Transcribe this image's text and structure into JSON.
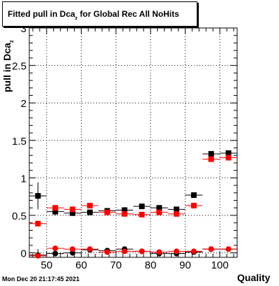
{
  "title": {
    "main": "Fitted pull in Dca",
    "subscript": "z",
    "suffix": " for Global Rec All NoHits"
  },
  "footer": {
    "timestamp": "Mon Dec 20 21:17:45 2021"
  },
  "chart_data": {
    "type": "scatter",
    "title": "Fitted pull in Dca_z for Global Rec All NoHits",
    "xlabel": "Quality",
    "ylabel_main": "pull in Dca",
    "ylabel_sub": "z",
    "xlim": [
      45,
      105
    ],
    "ylim": [
      -0.06,
      3.0
    ],
    "x_ticks": [
      50,
      60,
      70,
      80,
      90,
      100
    ],
    "x_tick_labels": [
      "50",
      "60",
      "70",
      "80",
      "90",
      "100"
    ],
    "y_ticks": [
      0,
      0.5,
      1,
      1.5,
      2,
      2.5,
      3
    ],
    "y_tick_labels": [
      "0",
      "0.5",
      "1",
      "1.5",
      "2",
      "2.5",
      "3"
    ],
    "grid": true,
    "x_bin_half_width": 2.5,
    "series": [
      {
        "marker": "square",
        "color": "#000000",
        "x": [
          47.5,
          52.5,
          57.5,
          62.5,
          67.5,
          72.5,
          77.5,
          82.5,
          87.5,
          92.5,
          97.5,
          102.5
        ],
        "y": [
          0.76,
          0.55,
          0.53,
          0.54,
          0.56,
          0.57,
          0.62,
          0.6,
          0.58,
          0.77,
          1.32,
          1.33
        ],
        "yerr": [
          0.18,
          0.05,
          0.03,
          0.03,
          0.02,
          0.02,
          0.02,
          0.02,
          0.03,
          0.02,
          0.02,
          0.02
        ]
      },
      {
        "marker": "square",
        "color": "#ff0000",
        "x": [
          47.5,
          52.5,
          57.5,
          62.5,
          67.5,
          72.5,
          77.5,
          82.5,
          87.5,
          92.5,
          97.5,
          102.5
        ],
        "y": [
          0.39,
          0.6,
          0.58,
          0.63,
          0.54,
          0.52,
          0.51,
          0.54,
          0.52,
          0.63,
          1.25,
          1.27
        ],
        "yerr": [
          0.03,
          0.03,
          0.02,
          0.02,
          0.02,
          0.02,
          0.02,
          0.02,
          0.02,
          0.02,
          0.02,
          0.02
        ]
      },
      {
        "marker": "circle",
        "color": "#000000",
        "x": [
          47.5,
          52.5,
          57.5,
          62.5,
          67.5,
          72.5,
          77.5,
          82.5,
          87.5,
          92.5,
          97.5,
          102.5
        ],
        "y": [
          -0.03,
          -0.01,
          0.0,
          0.04,
          0.03,
          0.05,
          0.02,
          -0.01,
          -0.01,
          0.01,
          0.05,
          0.05
        ],
        "yerr": [
          0.08,
          0.03,
          0.02,
          0.02,
          0.02,
          0.02,
          0.02,
          0.02,
          0.02,
          0.02,
          0.02,
          0.02
        ]
      },
      {
        "marker": "circle",
        "color": "#ff0000",
        "x": [
          47.5,
          52.5,
          57.5,
          62.5,
          67.5,
          72.5,
          77.5,
          82.5,
          87.5,
          92.5,
          97.5,
          102.5
        ],
        "y": [
          -0.04,
          0.06,
          0.05,
          0.05,
          0.01,
          0.02,
          0.02,
          0.01,
          0.02,
          0.02,
          0.05,
          0.05
        ],
        "yerr": [
          0.02,
          0.02,
          0.02,
          0.02,
          0.02,
          0.02,
          0.02,
          0.02,
          0.02,
          0.02,
          0.02,
          0.02
        ]
      }
    ]
  }
}
